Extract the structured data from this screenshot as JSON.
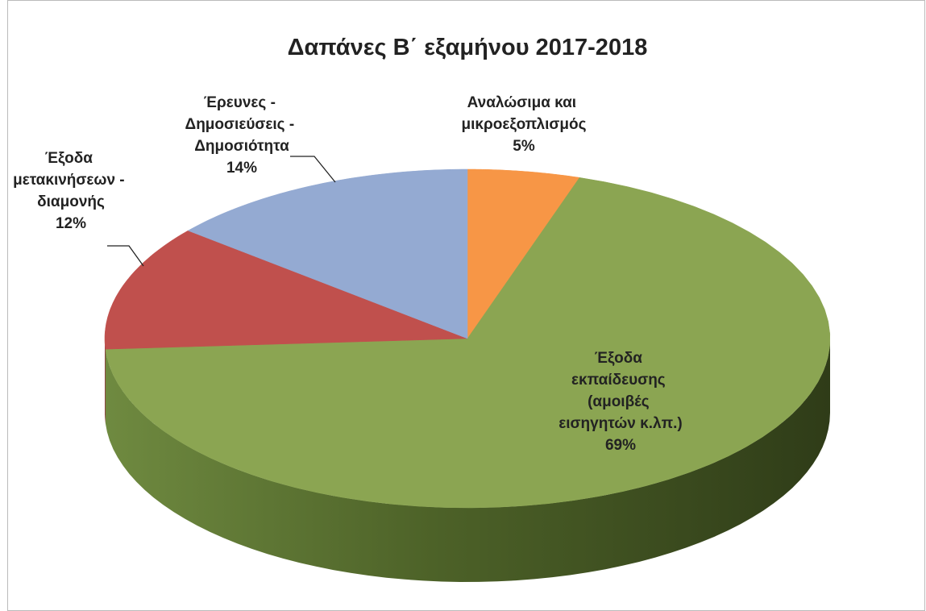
{
  "chart_data": {
    "type": "pie",
    "title": "Δαπάνες Β΄ εξαμήνου 2017-2018",
    "categories": [
      "Αναλώσιμα και μικροεξοπλισμός",
      "Έξοδα εκπαίδευσης (αμοιβές εισηγητών κ.λπ.)",
      "Έξοδα μετακινήσεων - διαμονής",
      "Έρευνες - Δημοσιεύσεις - Δημοσιότητα"
    ],
    "values": [
      5,
      69,
      12,
      14
    ],
    "value_labels": [
      "5%",
      "69%",
      "12%",
      "14%"
    ],
    "colors": [
      "#f79646",
      "#8ba552",
      "#c0504d",
      "#94aad2"
    ]
  }
}
